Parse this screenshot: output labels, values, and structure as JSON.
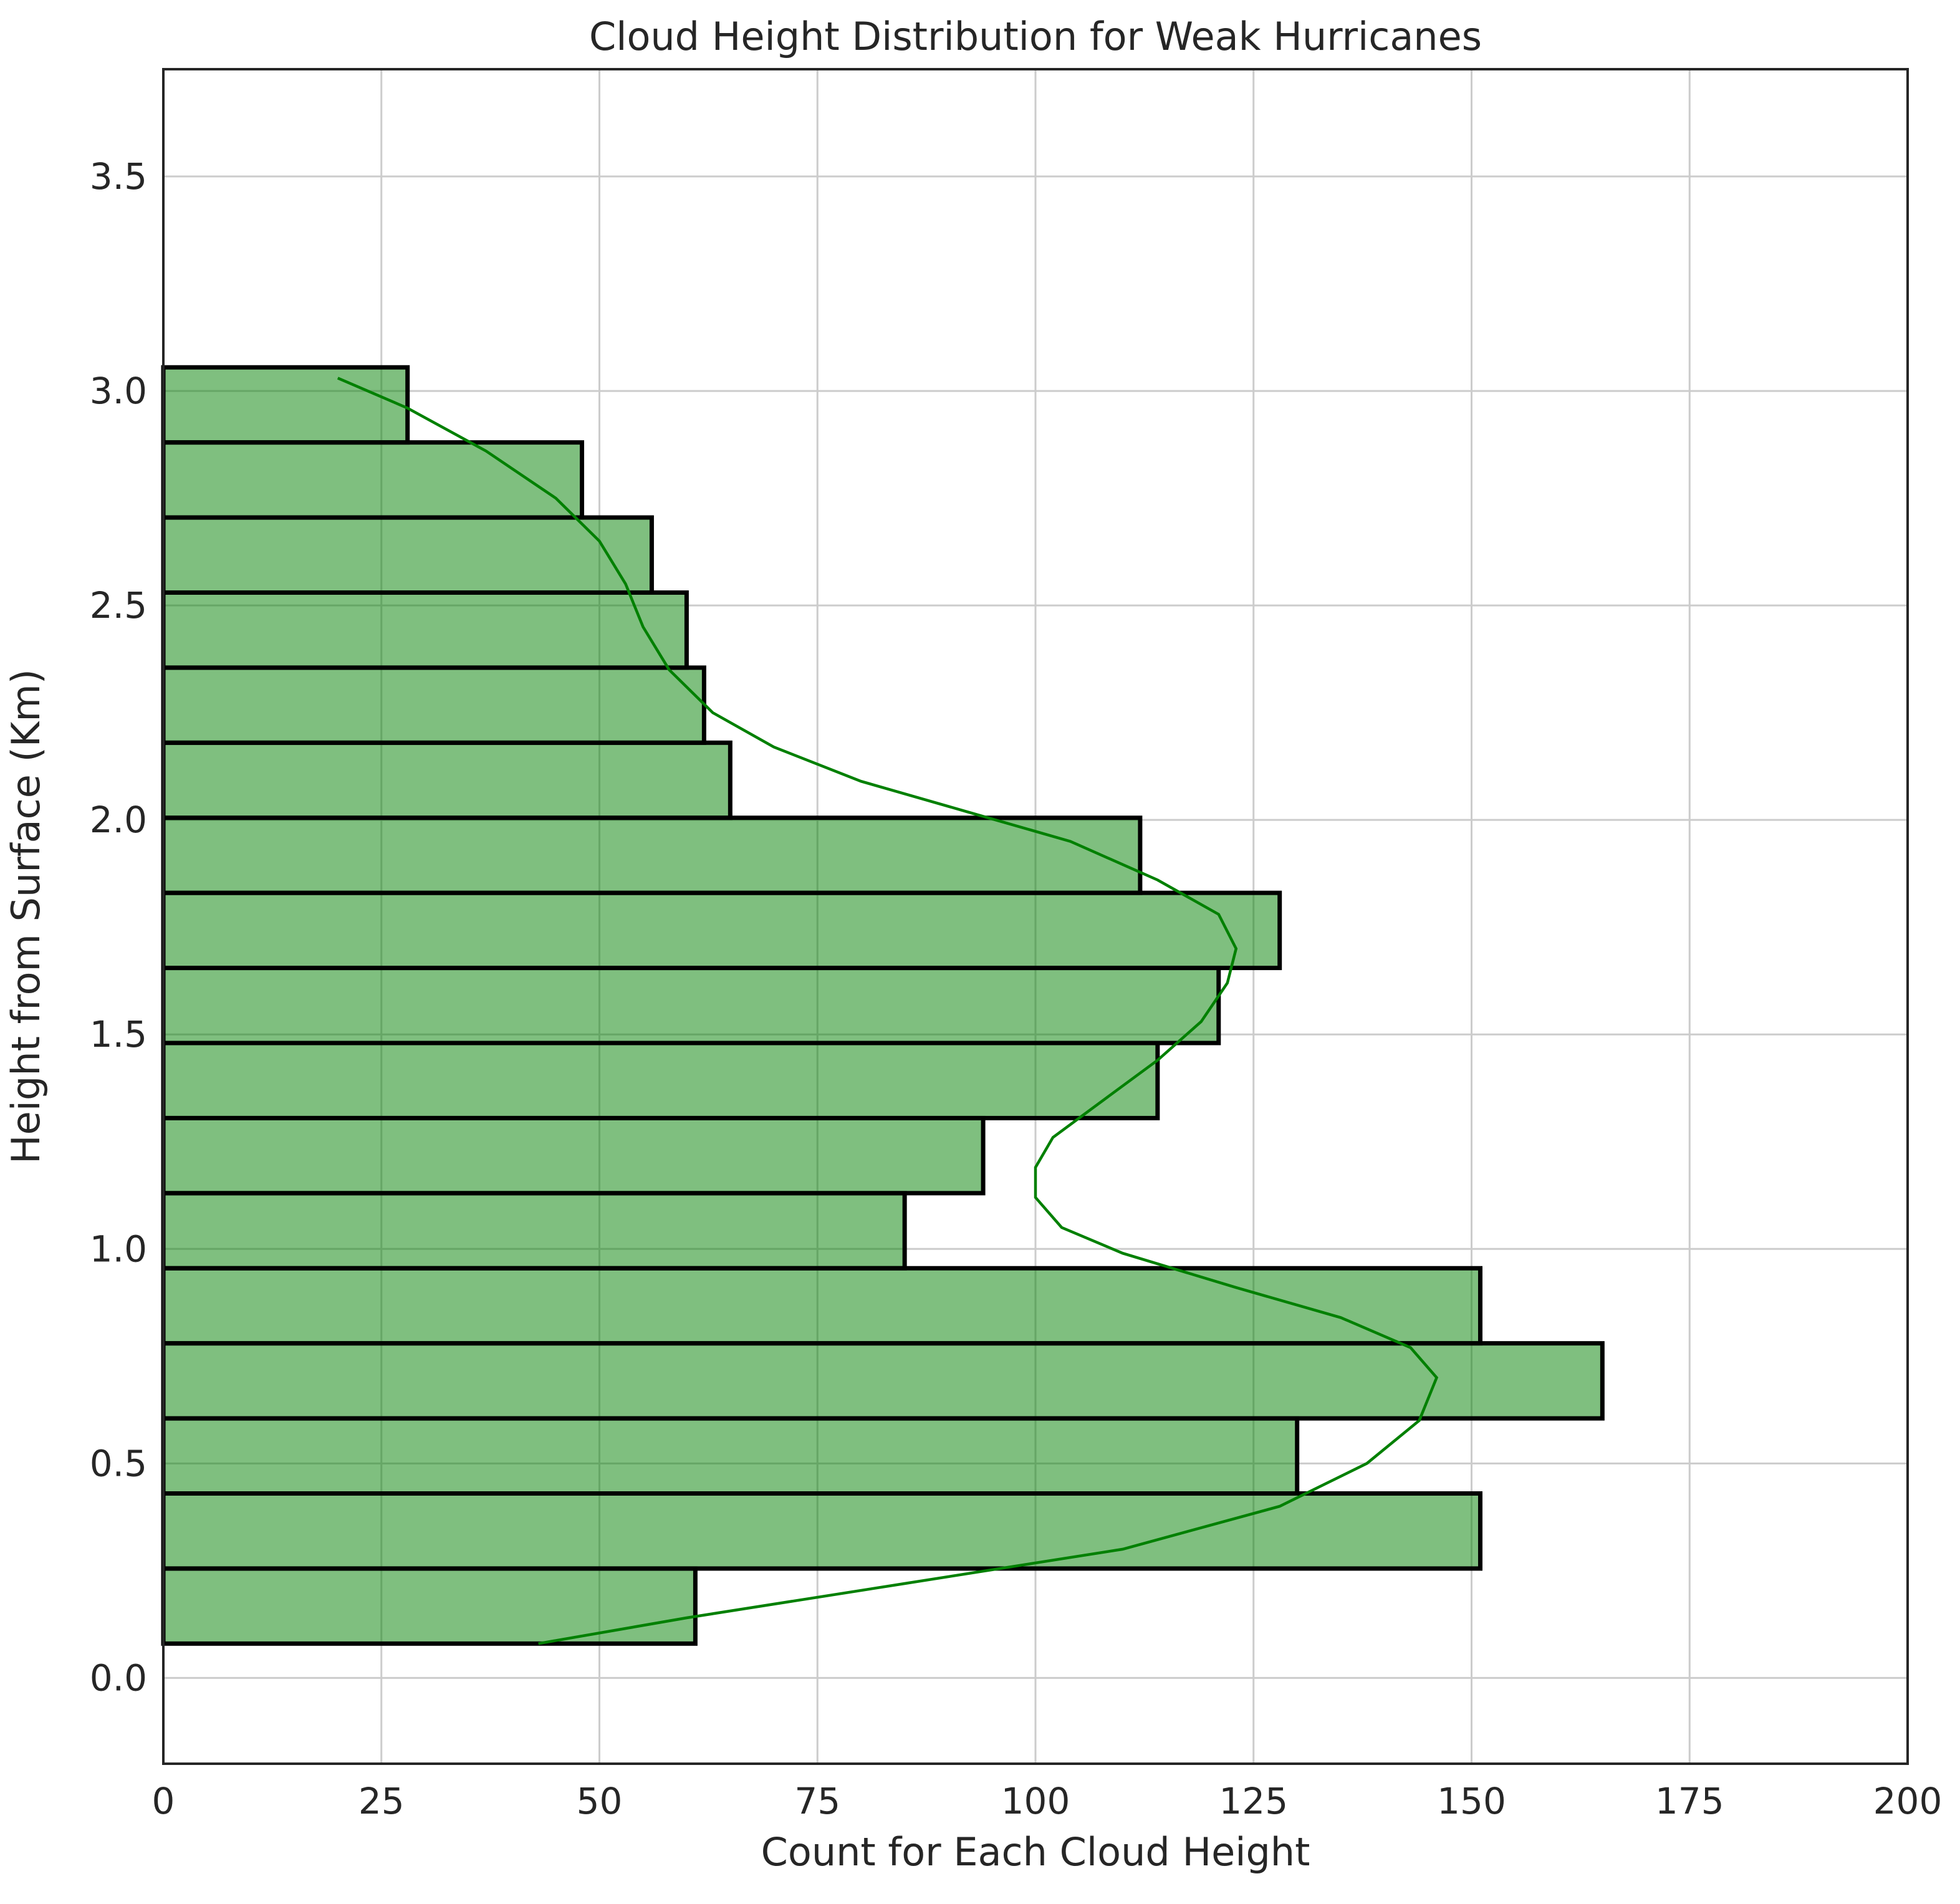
{
  "chart_data": {
    "type": "bar",
    "orientation": "horizontal",
    "title": "Cloud Height Distribution for Weak Hurricanes",
    "xlabel": "Count for Each Cloud Height",
    "ylabel": "Height from Surface (Km)",
    "xlim": [
      0,
      200
    ],
    "ylim": [
      -0.2,
      3.75
    ],
    "xticks": [
      0,
      25,
      50,
      75,
      100,
      125,
      150,
      175,
      200
    ],
    "yticks": [
      0.0,
      0.5,
      1.0,
      1.5,
      2.0,
      2.5,
      3.0,
      3.5
    ],
    "xtick_labels": [
      "0",
      "25",
      "50",
      "75",
      "100",
      "125",
      "150",
      "175",
      "200"
    ],
    "ytick_labels": [
      "0.0",
      "0.5",
      "1.0",
      "1.5",
      "2.0",
      "2.5",
      "3.0",
      "3.5"
    ],
    "grid": true,
    "bins": [
      {
        "low": 0.08,
        "high": 0.255,
        "count": 61
      },
      {
        "low": 0.255,
        "high": 0.43,
        "count": 151
      },
      {
        "low": 0.43,
        "high": 0.605,
        "count": 130
      },
      {
        "low": 0.605,
        "high": 0.78,
        "count": 165
      },
      {
        "low": 0.78,
        "high": 0.955,
        "count": 151
      },
      {
        "low": 0.955,
        "high": 1.13,
        "count": 85
      },
      {
        "low": 1.13,
        "high": 1.305,
        "count": 94
      },
      {
        "low": 1.305,
        "high": 1.48,
        "count": 114
      },
      {
        "low": 1.48,
        "high": 1.655,
        "count": 121
      },
      {
        "low": 1.655,
        "high": 1.83,
        "count": 128
      },
      {
        "low": 1.83,
        "high": 2.005,
        "count": 112
      },
      {
        "low": 2.005,
        "high": 2.18,
        "count": 65
      },
      {
        "low": 2.18,
        "high": 2.355,
        "count": 62
      },
      {
        "low": 2.355,
        "high": 2.53,
        "count": 60
      },
      {
        "low": 2.53,
        "high": 2.705,
        "count": 56
      },
      {
        "low": 2.705,
        "high": 2.88,
        "count": 48
      },
      {
        "low": 2.88,
        "high": 3.055,
        "count": 28
      }
    ],
    "kde": [
      {
        "x": 43,
        "y": 0.08
      },
      {
        "x": 60,
        "y": 0.14
      },
      {
        "x": 85,
        "y": 0.22
      },
      {
        "x": 110,
        "y": 0.3
      },
      {
        "x": 128,
        "y": 0.4
      },
      {
        "x": 138,
        "y": 0.5
      },
      {
        "x": 144,
        "y": 0.6
      },
      {
        "x": 146,
        "y": 0.7
      },
      {
        "x": 143,
        "y": 0.77
      },
      {
        "x": 135,
        "y": 0.84
      },
      {
        "x": 123,
        "y": 0.91
      },
      {
        "x": 110,
        "y": 0.99
      },
      {
        "x": 103,
        "y": 1.05
      },
      {
        "x": 100,
        "y": 1.12
      },
      {
        "x": 100,
        "y": 1.19
      },
      {
        "x": 102,
        "y": 1.26
      },
      {
        "x": 108,
        "y": 1.35
      },
      {
        "x": 114,
        "y": 1.44
      },
      {
        "x": 119,
        "y": 1.53
      },
      {
        "x": 122,
        "y": 1.62
      },
      {
        "x": 123,
        "y": 1.7
      },
      {
        "x": 121,
        "y": 1.78
      },
      {
        "x": 114,
        "y": 1.86
      },
      {
        "x": 104,
        "y": 1.95
      },
      {
        "x": 92,
        "y": 2.02
      },
      {
        "x": 80,
        "y": 2.09
      },
      {
        "x": 70,
        "y": 2.17
      },
      {
        "x": 63,
        "y": 2.25
      },
      {
        "x": 58,
        "y": 2.35
      },
      {
        "x": 55,
        "y": 2.45
      },
      {
        "x": 53,
        "y": 2.55
      },
      {
        "x": 50,
        "y": 2.65
      },
      {
        "x": 45,
        "y": 2.75
      },
      {
        "x": 37,
        "y": 2.86
      },
      {
        "x": 28,
        "y": 2.96
      },
      {
        "x": 20,
        "y": 3.03
      }
    ],
    "colors": {
      "bar_fill": "#008000",
      "bar_edge": "#000000",
      "kde_line": "#008000",
      "grid": "#cccccc"
    }
  }
}
